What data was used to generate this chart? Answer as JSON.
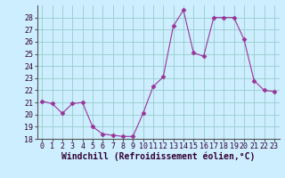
{
  "x": [
    0,
    1,
    2,
    3,
    4,
    5,
    6,
    7,
    8,
    9,
    10,
    11,
    12,
    13,
    14,
    15,
    16,
    17,
    18,
    19,
    20,
    21,
    22,
    23
  ],
  "y": [
    21.1,
    20.9,
    20.1,
    20.9,
    21.0,
    19.0,
    18.4,
    18.3,
    18.2,
    18.2,
    20.1,
    22.3,
    23.1,
    27.3,
    28.6,
    25.1,
    24.8,
    28.0,
    28.0,
    28.0,
    26.2,
    22.8,
    22.0,
    21.9
  ],
  "line_color": "#993399",
  "marker": "D",
  "marker_size": 2.5,
  "bg_color": "#cceeff",
  "grid_color": "#99cccc",
  "xlabel": "Windchill (Refroidissement éolien,°C)",
  "xlabel_fontsize": 7,
  "tick_fontsize": 6,
  "ylim": [
    18,
    29
  ],
  "xlim": [
    -0.5,
    23.5
  ],
  "yticks": [
    18,
    19,
    20,
    21,
    22,
    23,
    24,
    25,
    26,
    27,
    28
  ],
  "xticks": [
    0,
    1,
    2,
    3,
    4,
    5,
    6,
    7,
    8,
    9,
    10,
    11,
    12,
    13,
    14,
    15,
    16,
    17,
    18,
    19,
    20,
    21,
    22,
    23
  ]
}
